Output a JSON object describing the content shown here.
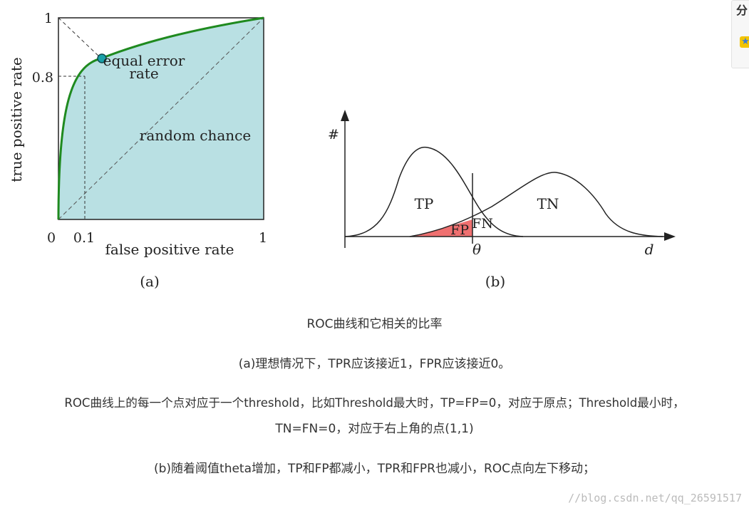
{
  "figure_a": {
    "y_tick_top": "1",
    "y_tick_08": "0.8",
    "x_tick_0": "0",
    "x_tick_01": "0.1",
    "x_tick_1": "1",
    "y_axis_label": "true positive rate",
    "x_axis_label": "false positive rate",
    "eer_label_line1": "equal error",
    "eer_label_line2": "rate",
    "random_label": "random chance",
    "caption": "(a)"
  },
  "figure_b": {
    "y_axis_label": "#",
    "tp_label": "TP",
    "tn_label": "TN",
    "fp_label": "FP",
    "fn_label": "FN",
    "threshold_label": "θ",
    "x_axis_label": "d",
    "caption": "(b)"
  },
  "text": {
    "title": "ROC曲线和它相关的比率",
    "line_a": "(a)理想情况下，TPR应该接近1，FPR应该接近0。",
    "line_roc_1": "ROC曲线上的每一个点对应于一个threshold，比如Threshold最大时，TP=FP=0，对应于原点；Threshold最小时，",
    "line_roc_2": "TN=FN=0，对应于右上角的点(1,1)",
    "line_b": "(b)随着阈值theta增加，TP和FP都减小，TPR和FPR也减小，ROC点向左下移动；"
  },
  "share": {
    "label": "分"
  },
  "watermark": "//blog.csdn.net/qq_26591517",
  "colors": {
    "roc_fill": "#b9e0e3",
    "roc_curve": "#1f8a1f",
    "eer_point": "#1aa0a8",
    "fp_fill": "#ef7070"
  }
}
